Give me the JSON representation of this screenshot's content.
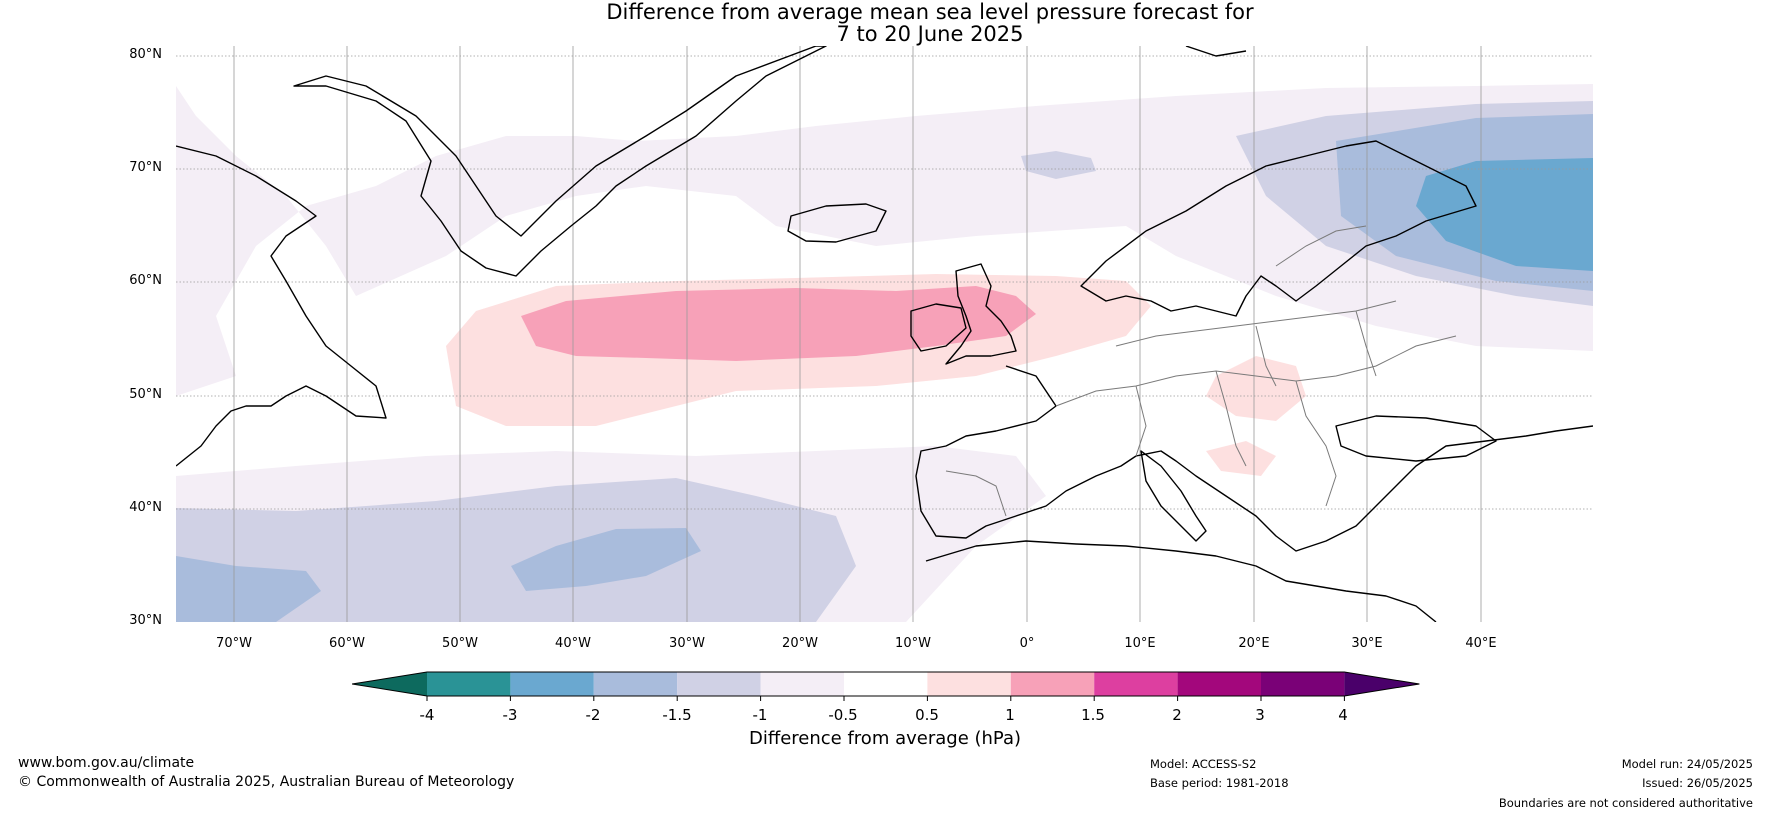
{
  "title_line1": "Difference from average mean sea level pressure forecast for",
  "title_line2": "7 to 20 June 2025",
  "lat_labels": [
    "80°N",
    "70°N",
    "60°N",
    "50°N",
    "40°N",
    "30°N"
  ],
  "lon_labels": [
    "70°W",
    "60°W",
    "50°W",
    "40°W",
    "30°W",
    "20°W",
    "10°W",
    "0°",
    "10°E",
    "20°E",
    "30°E",
    "40°E"
  ],
  "colorbar": {
    "title": "Difference from average (hPa)",
    "ticks": [
      "-4",
      "-3",
      "-2",
      "-1.5",
      "-1",
      "-0.5",
      "0.5",
      "1",
      "1.5",
      "2",
      "3",
      "4"
    ],
    "colors": [
      "#2a9396",
      "#6aa8d0",
      "#a9bcdc",
      "#d0d1e5",
      "#f4eef6",
      "#ffffff",
      "#fde0e0",
      "#f7a1b8",
      "#dd3fa0",
      "#a3077c",
      "#7a0177"
    ],
    "under_color": "#0d6a5e",
    "over_color": "#4a006a"
  },
  "footer": {
    "url": "www.bom.gov.au/climate",
    "copyright": "© Commonwealth of Australia 2025, Australian Bureau of Meteorology",
    "model": "Model: ACCESS-S2",
    "base_period": "Base period: 1981-2018",
    "model_run": "Model run: 24/05/2025",
    "issued": "Issued: 26/05/2025",
    "disclaimer": "Boundaries are not considered authoritative"
  }
}
